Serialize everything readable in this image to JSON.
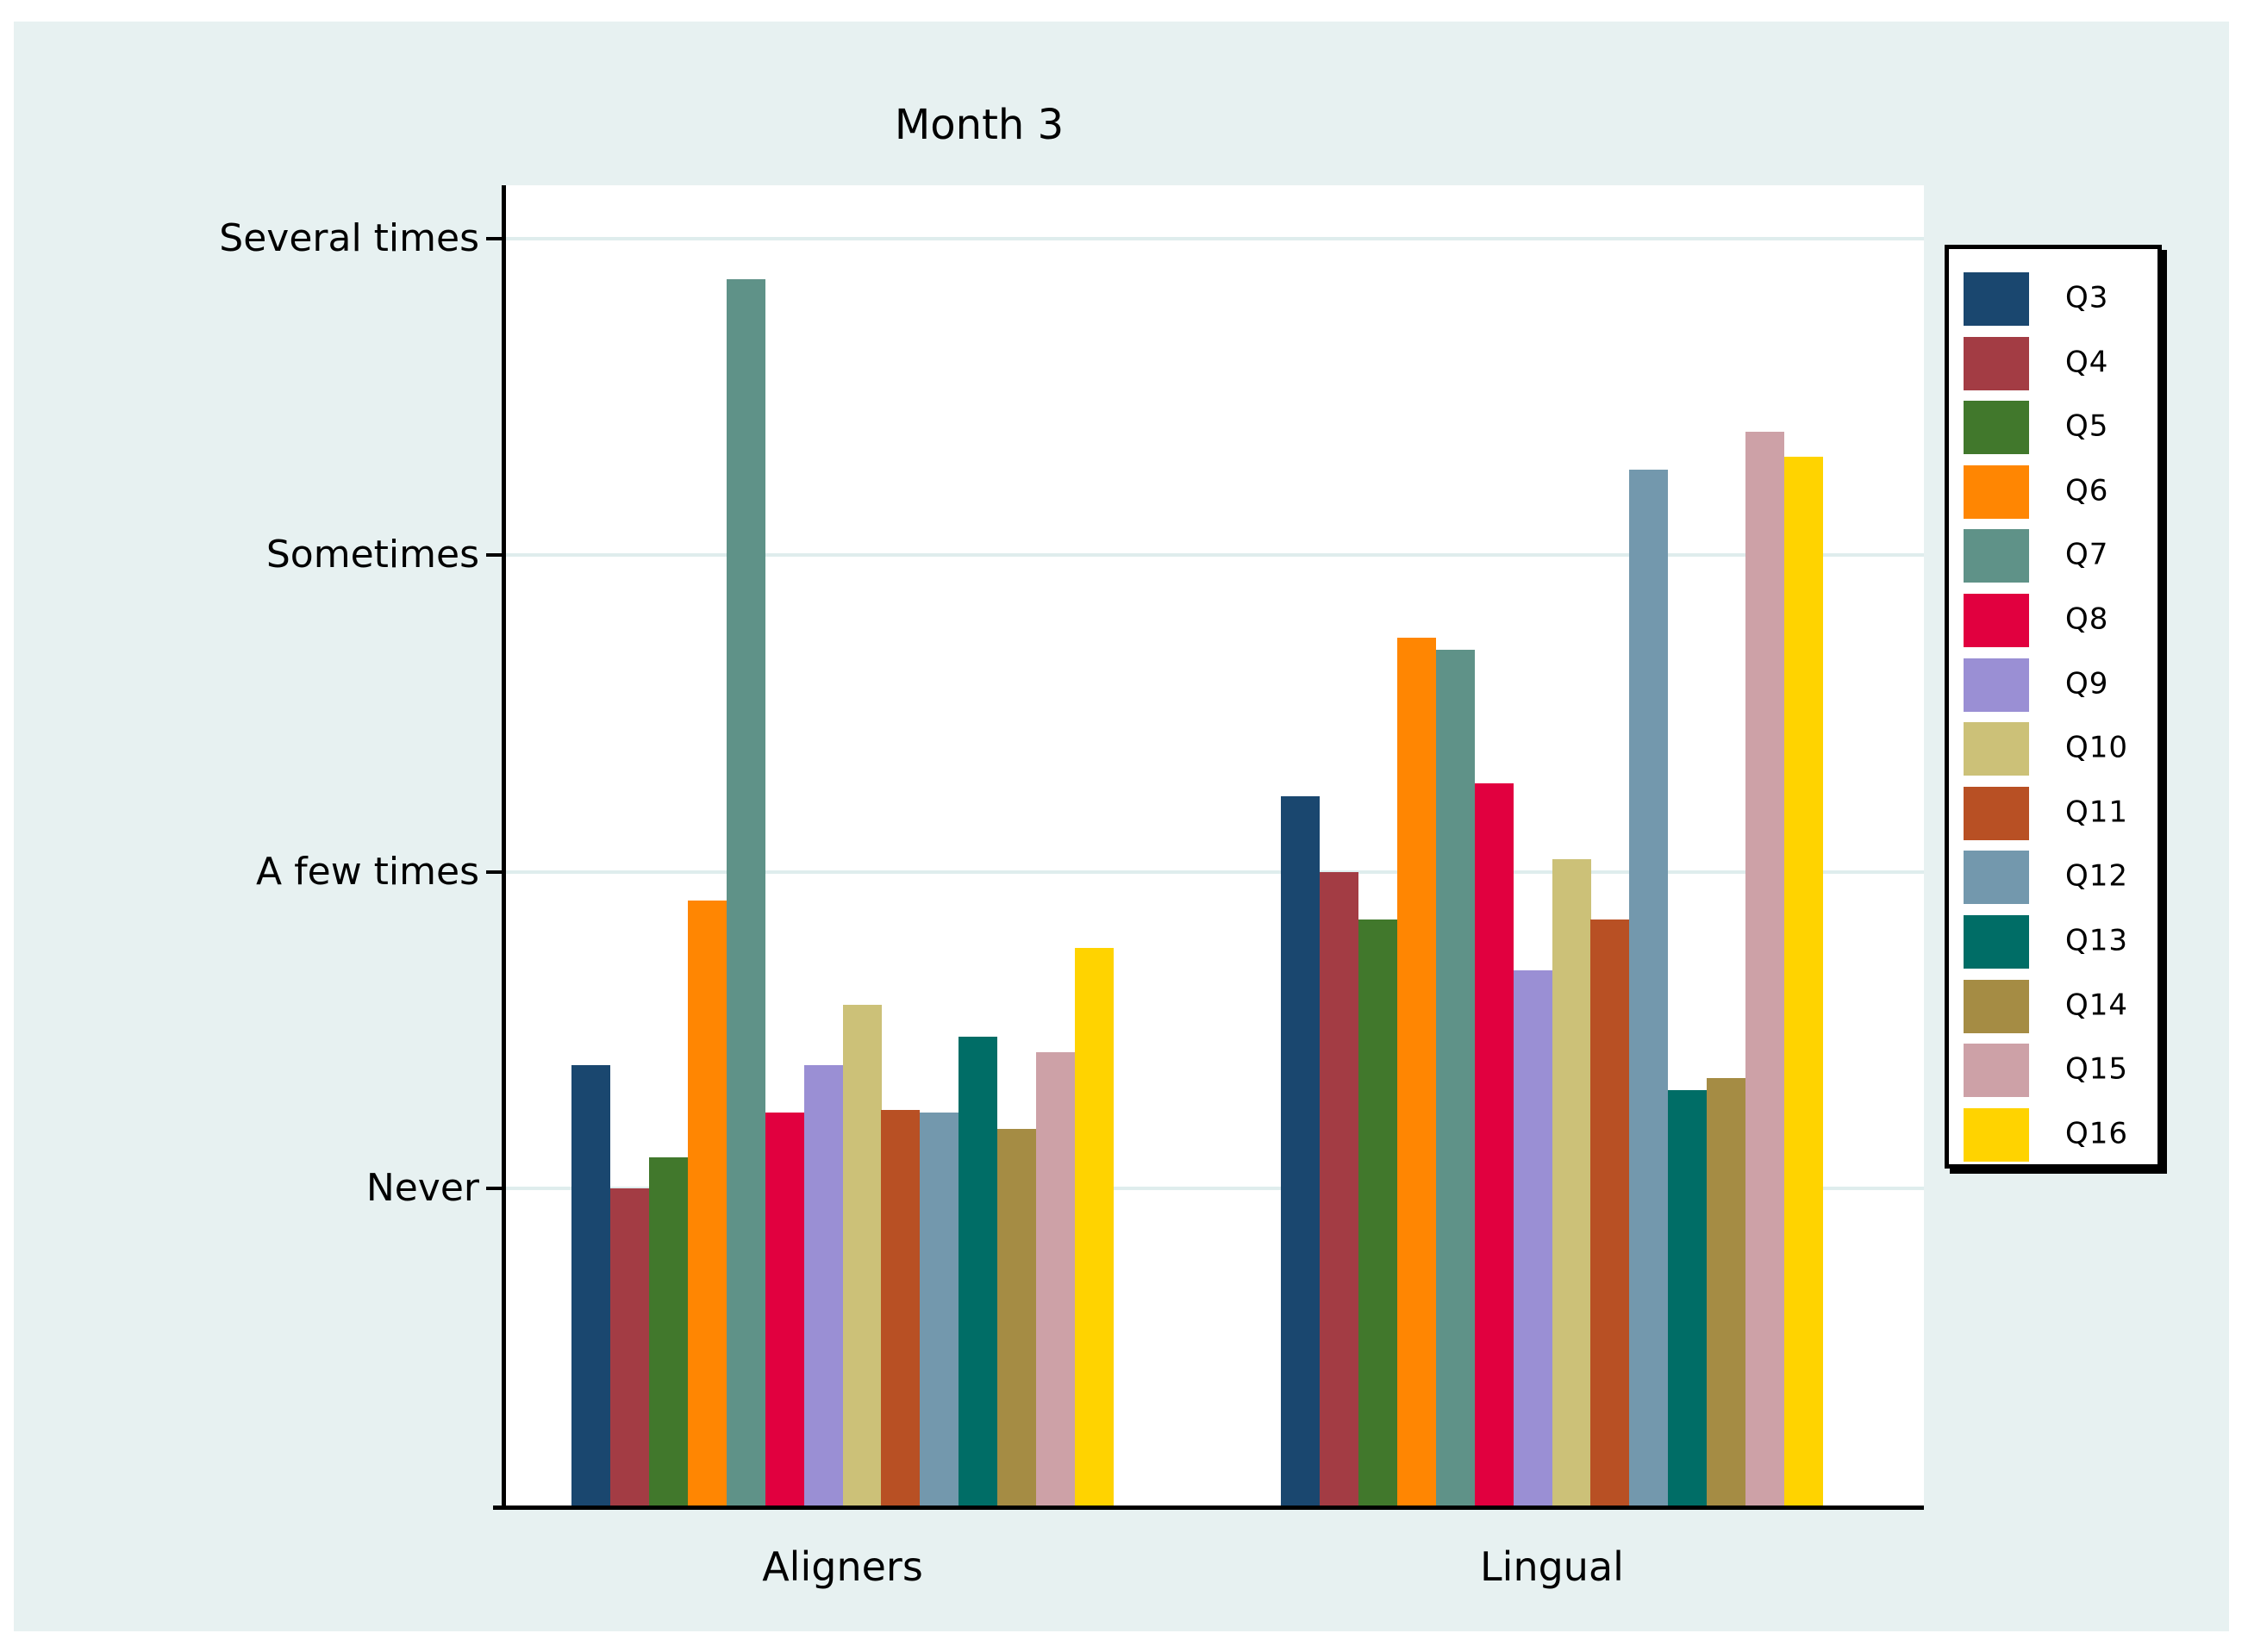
{
  "title": "Month 3",
  "panel_bg": "#e7f1f1",
  "plot_bg": "#ffffff",
  "gridline_color": "#dfeded",
  "chart_data": {
    "type": "bar",
    "title": "Month 3",
    "categories": [
      "Aligners",
      "Lingual"
    ],
    "xlabel": "",
    "ylabel": "",
    "y_tick_labels": [
      "Never",
      "A few times",
      "Sometimes",
      "Several times"
    ],
    "y_tick_values": [
      1,
      2,
      3,
      4
    ],
    "ylim": [
      0,
      4.17
    ],
    "grid": true,
    "legend_position": "right",
    "series": [
      {
        "name": "Q3",
        "color": "#1a476f",
        "values": [
          1.39,
          2.24
        ]
      },
      {
        "name": "Q4",
        "color": "#a33c44",
        "values": [
          1.0,
          2.0
        ]
      },
      {
        "name": "Q5",
        "color": "#41782c",
        "values": [
          1.1,
          1.85
        ]
      },
      {
        "name": "Q6",
        "color": "#ff8602",
        "values": [
          1.91,
          2.74
        ]
      },
      {
        "name": "Q7",
        "color": "#5f9288",
        "values": [
          3.87,
          2.7
        ]
      },
      {
        "name": "Q8",
        "color": "#e1003f",
        "values": [
          1.24,
          2.28
        ]
      },
      {
        "name": "Q9",
        "color": "#9a8fd4",
        "values": [
          1.39,
          1.69
        ]
      },
      {
        "name": "Q10",
        "color": "#ccc178",
        "values": [
          1.58,
          2.04
        ]
      },
      {
        "name": "Q11",
        "color": "#b85024",
        "values": [
          1.25,
          1.85
        ]
      },
      {
        "name": "Q12",
        "color": "#7398ad",
        "values": [
          1.24,
          3.27
        ]
      },
      {
        "name": "Q13",
        "color": "#006d66",
        "values": [
          1.48,
          1.31
        ]
      },
      {
        "name": "Q14",
        "color": "#a58c44",
        "values": [
          1.19,
          1.35
        ]
      },
      {
        "name": "Q15",
        "color": "#cda1a7",
        "values": [
          1.43,
          3.39
        ]
      },
      {
        "name": "Q16",
        "color": "#ffd300",
        "values": [
          1.76,
          3.31
        ]
      }
    ]
  }
}
